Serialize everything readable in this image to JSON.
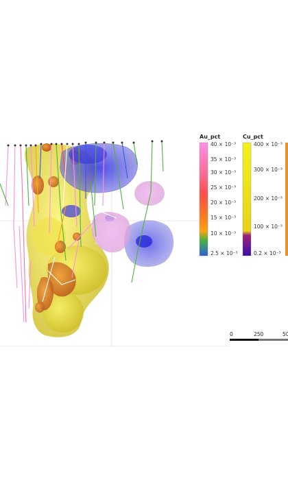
{
  "legend_au": {
    "title": "Au_pct",
    "ticks": [
      "40 × 10⁻³",
      "35 × 10⁻³",
      "30 × 10⁻³",
      "25 × 10⁻³",
      "20 × 10⁻³",
      "15 × 10⁻³",
      "10 × 10⁻³",
      "2.5 × 10⁻³"
    ],
    "colors": [
      "#ff8fe6",
      "#ff6f9e",
      "#ff4e4e",
      "#ff7a1e",
      "#ffa312",
      "#4bb53b",
      "#2b5fd8"
    ]
  },
  "legend_cu": {
    "title": "Cu_pct",
    "ticks": [
      "400 × 10⁻³",
      "300 × 10⁻³",
      "200 × 10⁻³",
      "100 × 10⁻³",
      "0.2 × 10⁻³"
    ],
    "colors": [
      "#f3f11d",
      "#d7a020",
      "#9b2278",
      "#3a0fa8"
    ]
  },
  "scale_bar": {
    "labels": [
      "0",
      "250",
      "50"
    ]
  },
  "icons": {
    "viewport": "3d-geology-model-view"
  }
}
